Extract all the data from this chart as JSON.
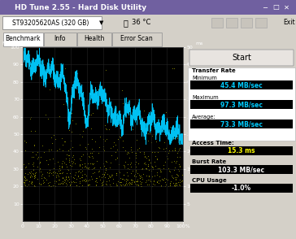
{
  "title": "HD Tune 2.55 - Hard Disk Utility",
  "drive": "ST93205620AS (320 GB)",
  "temp": "36 °C",
  "bg_color": "#000000",
  "window_bg": "#d4d0c8",
  "cyan_color": "#00ccff",
  "yellow_color": "#cccc00",
  "transfer_rate_min": "45.4 MB/sec",
  "transfer_rate_max": "97.3 MB/sec",
  "transfer_rate_avg": "73.3 MB/sec",
  "access_time": "15.3 ms",
  "burst_rate": "103.3 MB/sec",
  "cpu_usage": "-1.0%",
  "tabs": [
    "Benchmark",
    "Info",
    "Health",
    "Error Scan"
  ]
}
